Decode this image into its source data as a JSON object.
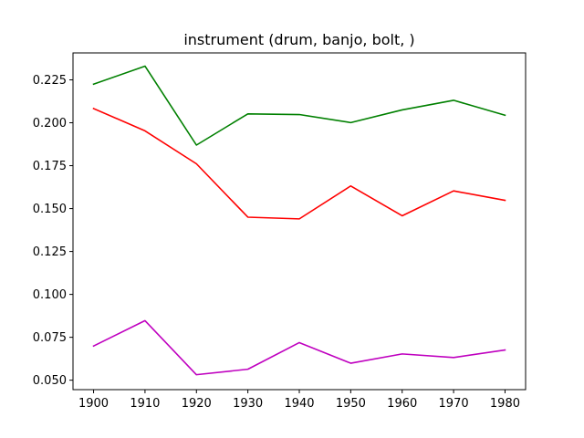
{
  "chart_data": {
    "type": "line",
    "title": "instrument (drum, banjo, bolt, )",
    "xlabel": "",
    "ylabel": "",
    "x": [
      1900,
      1910,
      1920,
      1930,
      1940,
      1950,
      1960,
      1970,
      1980
    ],
    "xlim": [
      1896,
      1984
    ],
    "ylim": [
      0.0445,
      0.2407
    ],
    "xticks": [
      1900,
      1910,
      1920,
      1930,
      1940,
      1950,
      1960,
      1970,
      1980
    ],
    "yticks": [
      0.05,
      0.075,
      0.1,
      0.125,
      0.15,
      0.175,
      0.2,
      0.225
    ],
    "ytick_labels": [
      "0.050",
      "0.075",
      "0.100",
      "0.125",
      "0.150",
      "0.175",
      "0.200",
      "0.225"
    ],
    "grid": false,
    "series": [
      {
        "color": "#008000",
        "values": [
          0.2225,
          0.233,
          0.187,
          0.2052,
          0.2048,
          0.2001,
          0.2075,
          0.2131,
          0.2044
        ]
      },
      {
        "color": "#ff0000",
        "values": [
          0.2083,
          0.1953,
          0.1761,
          0.145,
          0.144,
          0.1632,
          0.1458,
          0.1603,
          0.1548
        ]
      },
      {
        "color": "#bf00bf",
        "values": [
          0.0699,
          0.0847,
          0.0532,
          0.0564,
          0.0719,
          0.0599,
          0.0653,
          0.0632,
          0.0676
        ]
      }
    ]
  }
}
